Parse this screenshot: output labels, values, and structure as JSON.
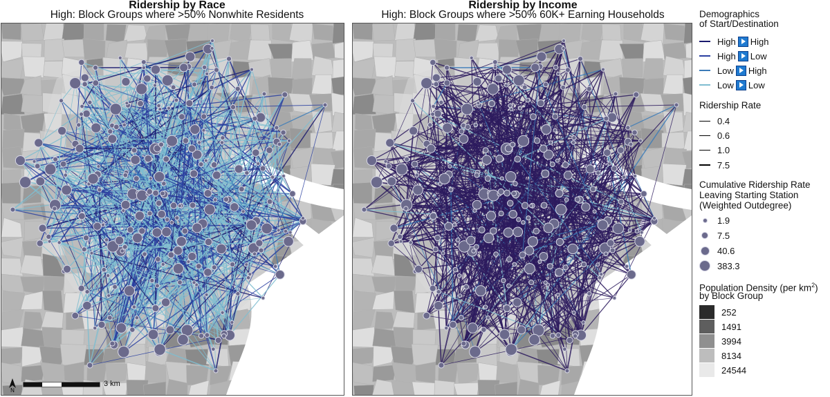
{
  "panels": [
    {
      "title": "Ridership by Race",
      "subtitle": "High: Block Groups where >50% Nonwhite Residents"
    },
    {
      "title": "Ridership by Income",
      "subtitle": "High: Block Groups where >50% 60K+ Earning Households"
    }
  ],
  "legend": {
    "demographics_title_line1": "Demographics",
    "demographics_title_line2": "of Start/Destination",
    "demographics_items": [
      {
        "from": "High",
        "to": "High",
        "color": "#1a1a6e"
      },
      {
        "from": "High",
        "to": "Low",
        "color": "#2a3fa0"
      },
      {
        "from": "Low",
        "to": "High",
        "color": "#3b7bb8"
      },
      {
        "from": "Low",
        "to": "Low",
        "color": "#7fbdd0"
      }
    ],
    "ridership_rate_title": "Ridership Rate",
    "ridership_rate_items": [
      "0.4",
      "0.6",
      "1.0",
      "7.5"
    ],
    "outdegree_title_line1": "Cumulative Ridership Rate",
    "outdegree_title_line2": "Leaving Starting Station",
    "outdegree_title_line3": "(Weighted Outdegree)",
    "outdegree_items": [
      "1.9",
      "7.5",
      "40.6",
      "383.3"
    ],
    "density_title_line1": "Population Density (per km",
    "density_title_sup": "2",
    "density_title_sup_close": ")",
    "density_title_line2": "by Block Group",
    "density_items": [
      {
        "label": "252",
        "color": "#2b2b2b"
      },
      {
        "label": "1491",
        "color": "#5e5e5e"
      },
      {
        "label": "3994",
        "color": "#8f8f8f"
      },
      {
        "label": "8134",
        "color": "#bdbdbd"
      },
      {
        "label": "24544",
        "color": "#e9e9e9"
      }
    ]
  },
  "scale": {
    "label": "3 km",
    "north": "N"
  },
  "colors": {
    "race_high_high": "#1a1a6e",
    "race_high_low": "#2a3fa0",
    "race_low_high": "#3b7bb8",
    "race_low_low": "#7fbdd0",
    "income_dominant": "#2d1b5e",
    "node_fill": "#6b6a8c",
    "node_stroke": "#d8d8e6"
  }
}
